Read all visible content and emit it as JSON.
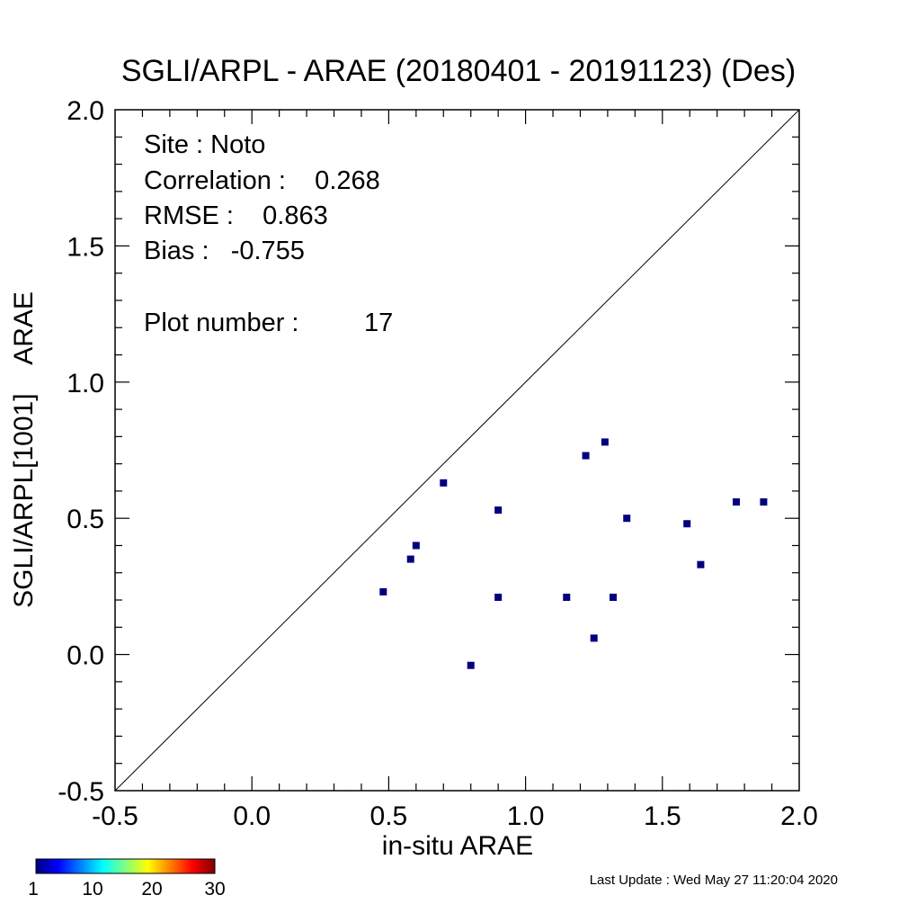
{
  "chart_data": {
    "type": "scatter",
    "title": "SGLI/ARPL - ARAE (20180401 - 20191123) (Des)",
    "xlabel": "in-situ ARAE",
    "ylabel": "SGLI/ARPL[1001]    ARAE",
    "xlim": [
      -0.5,
      2.0
    ],
    "ylim": [
      -0.5,
      2.0
    ],
    "x_ticks": [
      "-0.5",
      "0.0",
      "0.5",
      "1.0",
      "1.5",
      "2.0"
    ],
    "y_ticks": [
      "-0.5",
      "0.0",
      "0.5",
      "1.0",
      "1.5",
      "2.0"
    ],
    "one_to_one_line": true,
    "grid": false,
    "marker_color": "#00007f",
    "points": [
      {
        "x": 0.48,
        "y": 0.23
      },
      {
        "x": 0.58,
        "y": 0.35
      },
      {
        "x": 0.6,
        "y": 0.4
      },
      {
        "x": 0.7,
        "y": 0.63
      },
      {
        "x": 0.8,
        "y": -0.04
      },
      {
        "x": 0.9,
        "y": 0.53
      },
      {
        "x": 0.9,
        "y": 0.21
      },
      {
        "x": 1.15,
        "y": 0.21
      },
      {
        "x": 1.22,
        "y": 0.73
      },
      {
        "x": 1.25,
        "y": 0.06
      },
      {
        "x": 1.29,
        "y": 0.78
      },
      {
        "x": 1.32,
        "y": 0.21
      },
      {
        "x": 1.37,
        "y": 0.5
      },
      {
        "x": 1.59,
        "y": 0.48
      },
      {
        "x": 1.64,
        "y": 0.33
      },
      {
        "x": 1.77,
        "y": 0.56
      },
      {
        "x": 1.87,
        "y": 0.56
      }
    ],
    "stats": {
      "site": "Site : Noto",
      "correlation": "Correlation :    0.268",
      "rmse": "RMSE :    0.863",
      "bias": "Bias :   -0.755",
      "plot_number": "Plot number :         17"
    },
    "colorbar": {
      "tick_labels": [
        "1",
        "10",
        "20",
        "30"
      ],
      "colors": [
        "#00007f",
        "#0000ff",
        "#0080ff",
        "#00ffff",
        "#80ff80",
        "#ffff00",
        "#ff8000",
        "#ff0000",
        "#7f0000"
      ]
    }
  },
  "footer": {
    "last_update": "Last Update : Wed May 27 11:20:04 2020"
  }
}
